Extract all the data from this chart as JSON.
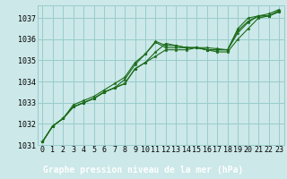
{
  "xlabel": "Graphe pression niveau de la mer (hPa)",
  "ylim": [
    1031.0,
    1037.6
  ],
  "xlim": [
    -0.5,
    23.5
  ],
  "yticks": [
    1031,
    1032,
    1033,
    1034,
    1035,
    1036,
    1037
  ],
  "xticks": [
    0,
    1,
    2,
    3,
    4,
    5,
    6,
    7,
    8,
    9,
    10,
    11,
    12,
    13,
    14,
    15,
    16,
    17,
    18,
    19,
    20,
    21,
    22,
    23
  ],
  "bg_color": "#cce8e8",
  "grid_color": "#99cccc",
  "line_color": "#1a6b1a",
  "label_bg_color": "#1a6b1a",
  "label_text_color": "#ffffff",
  "series1": [
    1031.15,
    1031.9,
    1032.25,
    1032.8,
    1033.0,
    1033.2,
    1033.5,
    1033.7,
    1033.9,
    1034.6,
    1034.9,
    1035.4,
    1035.8,
    1035.7,
    1035.6,
    1035.6,
    1035.5,
    1035.5,
    1035.5,
    1036.3,
    1036.8,
    1037.1,
    1037.1,
    1037.3
  ],
  "series2": [
    1031.15,
    1031.9,
    1032.25,
    1032.8,
    1033.0,
    1033.2,
    1033.5,
    1033.7,
    1033.9,
    1034.6,
    1034.9,
    1035.2,
    1035.5,
    1035.5,
    1035.5,
    1035.6,
    1035.5,
    1035.4,
    1035.4,
    1036.0,
    1036.5,
    1037.0,
    1037.1,
    1037.3
  ],
  "series3": [
    1031.15,
    1031.9,
    1032.25,
    1032.8,
    1033.0,
    1033.2,
    1033.5,
    1033.7,
    1034.1,
    1034.8,
    1035.3,
    1035.9,
    1035.7,
    1035.7,
    1035.6,
    1035.6,
    1035.5,
    1035.5,
    1035.5,
    1036.5,
    1037.0,
    1037.1,
    1037.2,
    1037.4
  ],
  "series4": [
    1031.15,
    1031.9,
    1032.25,
    1032.9,
    1033.1,
    1033.3,
    1033.6,
    1033.9,
    1034.2,
    1034.9,
    1035.3,
    1035.85,
    1035.6,
    1035.6,
    1035.6,
    1035.6,
    1035.6,
    1035.55,
    1035.5,
    1036.4,
    1036.85,
    1037.1,
    1037.1,
    1037.35
  ],
  "tick_fontsize": 6.0,
  "label_fontsize": 7.0
}
